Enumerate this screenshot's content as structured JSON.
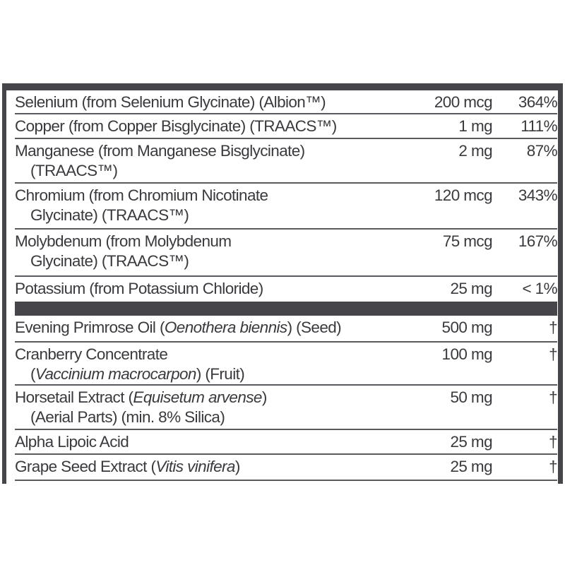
{
  "minerals": [
    {
      "name": "Selenium (from Selenium Glycinate) (Albion™)",
      "name2": "",
      "amount": "200 mcg",
      "dv": "364%"
    },
    {
      "name": "Copper (from Copper Bisglycinate) (TRAACS™)",
      "name2": "",
      "amount": "1 mg",
      "dv": "111%"
    },
    {
      "name": "Manganese (from Manganese Bisglycinate)",
      "name2": "(TRAACS™)",
      "amount": "2 mg",
      "dv": "87%"
    },
    {
      "name": "Chromium (from Chromium Nicotinate",
      "name2": "Glycinate) (TRAACS™)",
      "amount": "120 mcg",
      "dv": "343%"
    },
    {
      "name": "Molybdenum (from Molybdenum",
      "name2": "Glycinate) (TRAACS™)",
      "amount": "75 mcg",
      "dv": "167%"
    },
    {
      "name": "Potassium (from Potassium Chloride)",
      "name2": "",
      "amount": "25 mg",
      "dv": "< 1%"
    }
  ],
  "other": [
    {
      "pre": "Evening Primrose Oil (",
      "latin": "Oenothera biennis",
      "post": ") (Seed)",
      "line2_pre": "",
      "line2_latin": "",
      "line2_post": "",
      "amount": "500 mg",
      "dv": "†"
    },
    {
      "pre": "Cranberry Concentrate",
      "latin": "",
      "post": "",
      "line2_pre": "(",
      "line2_latin": "Vaccinium macrocarpon",
      "line2_post": ") (Fruit)",
      "amount": "100 mg",
      "dv": "†"
    },
    {
      "pre": "Horsetail Extract (",
      "latin": "Equisetum arvense",
      "post": ")",
      "line2_pre": "(Aerial Parts) (min. 8% Silica)",
      "line2_latin": "",
      "line2_post": "",
      "amount": "50 mg",
      "dv": "†"
    },
    {
      "pre": "Alpha Lipoic Acid",
      "latin": "",
      "post": "",
      "line2_pre": "",
      "line2_latin": "",
      "line2_post": "",
      "amount": "25 mg",
      "dv": "†"
    },
    {
      "pre": "Grape Seed Extract (",
      "latin": "Vitis vinifera",
      "post": ")",
      "line2_pre": "",
      "line2_latin": "",
      "line2_post": "",
      "amount": "25 mg",
      "dv": "†"
    }
  ],
  "colors": {
    "border": "#45454a",
    "text": "#3a3a3e",
    "rule": "#5a5a5e"
  }
}
